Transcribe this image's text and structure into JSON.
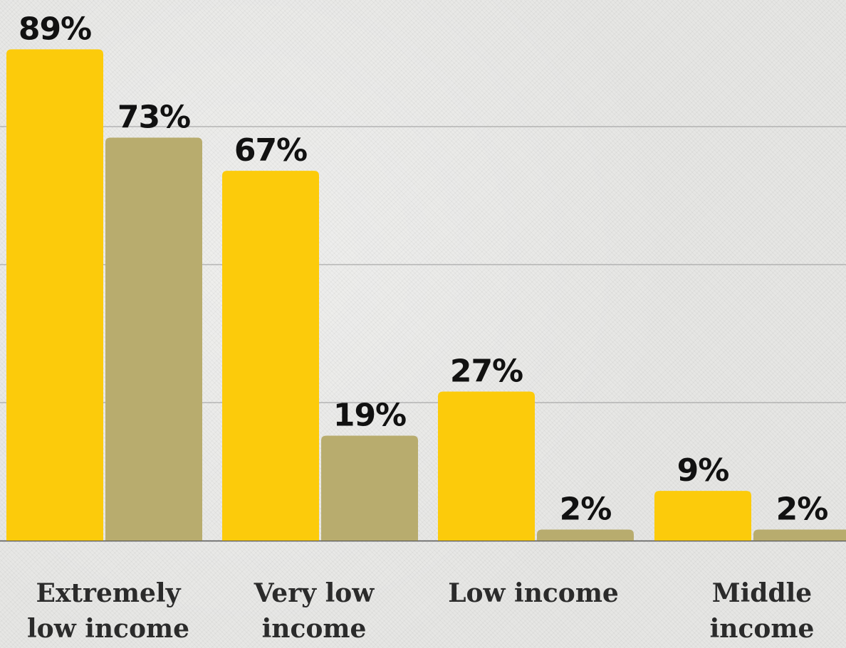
{
  "colors": {
    "series_a": "#fccb0b",
    "series_b": "#b8ac6e",
    "gridline": "#9a9a9a",
    "baseline": "#555555"
  },
  "chart_data": {
    "type": "bar",
    "categories": [
      [
        "Extremely",
        "low income"
      ],
      [
        "Very low",
        "income"
      ],
      [
        "Low income"
      ],
      [
        "Middle",
        "income"
      ]
    ],
    "series": [
      {
        "values": [
          89,
          67,
          27,
          9
        ],
        "labels": [
          "89%",
          "67%",
          "27%",
          "9%"
        ],
        "color": "#fccb0b"
      },
      {
        "values": [
          73,
          19,
          2,
          2
        ],
        "labels": [
          "73%",
          "19%",
          "2%",
          "2%"
        ],
        "color": "#b8ac6e"
      }
    ],
    "ylim": [
      0,
      100
    ],
    "gridlines": [
      25,
      50,
      75
    ],
    "grid": true,
    "legend": "none"
  }
}
